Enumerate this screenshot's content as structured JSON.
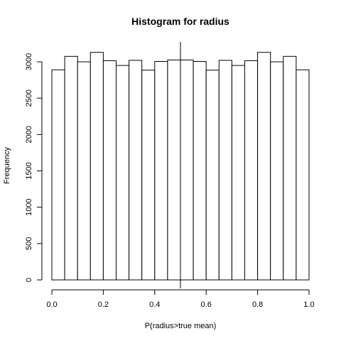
{
  "chart_data": {
    "type": "bar",
    "title": "Histogram for radius",
    "xlabel": "P(radius>true mean)",
    "ylabel": "Frequency",
    "bin_width": 0.05,
    "bin_starts": [
      0.0,
      0.05,
      0.1,
      0.15,
      0.2,
      0.25,
      0.3,
      0.35,
      0.4,
      0.45,
      0.5,
      0.55,
      0.6,
      0.65,
      0.7,
      0.75,
      0.8,
      0.85,
      0.9,
      0.95
    ],
    "values": [
      2890,
      3075,
      3000,
      3130,
      3015,
      2950,
      3020,
      2885,
      3005,
      3025,
      3025,
      3005,
      2885,
      3020,
      2950,
      3015,
      3130,
      3000,
      3075,
      2890
    ],
    "xlim": [
      0,
      1
    ],
    "ylim": [
      0,
      3000
    ],
    "x_ticks": [
      0.0,
      0.2,
      0.4,
      0.6,
      0.8,
      1.0
    ],
    "x_tick_labels": [
      "0.0",
      "0.2",
      "0.4",
      "0.6",
      "0.8",
      "1.0"
    ],
    "y_ticks": [
      0,
      500,
      1000,
      1500,
      2000,
      2500,
      3000
    ],
    "y_tick_labels": [
      "0",
      "500",
      "1000",
      "1500",
      "2000",
      "2500",
      "3000"
    ],
    "reference_line_x": 0.5,
    "grid": false,
    "legend": "none"
  }
}
